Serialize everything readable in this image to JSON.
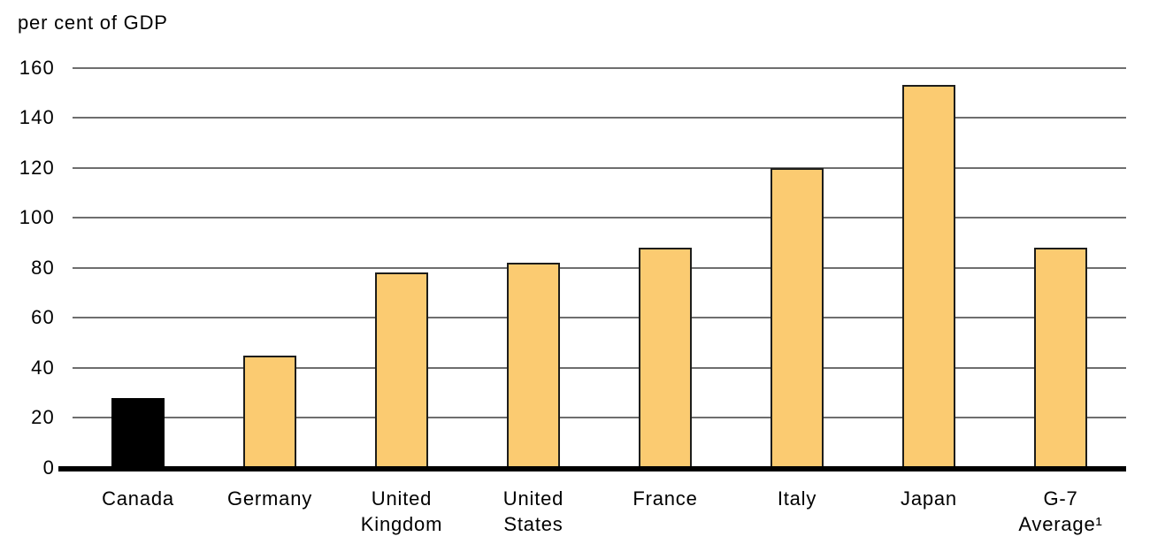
{
  "chart_data": {
    "type": "bar",
    "title": "",
    "ylabel": "per cent of GDP",
    "xlabel": "",
    "categories": [
      "Canada",
      "Germany",
      "United Kingdom",
      "United States",
      "France",
      "Italy",
      "Japan",
      "G-7 Average¹"
    ],
    "category_lines": [
      [
        "Canada"
      ],
      [
        "Germany"
      ],
      [
        "United",
        "Kingdom"
      ],
      [
        "United",
        "States"
      ],
      [
        "France"
      ],
      [
        "Italy"
      ],
      [
        "Japan"
      ],
      [
        "G-7",
        "Average¹"
      ]
    ],
    "values": [
      28,
      45,
      78,
      82,
      88,
      120,
      153,
      88
    ],
    "bar_fill_colors": [
      "#000000",
      "#FBCB71",
      "#FBCB71",
      "#FBCB71",
      "#FBCB71",
      "#FBCB71",
      "#FBCB71",
      "#FBCB71"
    ],
    "bar_border_colors": [
      "#000000",
      "#1d1d1b",
      "#1d1d1b",
      "#1d1d1b",
      "#1d1d1b",
      "#1d1d1b",
      "#1d1d1b",
      "#1d1d1b"
    ],
    "ylim": [
      0,
      160
    ],
    "yticks": [
      0,
      20,
      40,
      60,
      80,
      100,
      120,
      140,
      160
    ],
    "grid": true,
    "legend": null,
    "colors": {
      "gridline": "#6e6e6e",
      "baseline": "#000000",
      "text": "#000000",
      "background": "#ffffff"
    }
  }
}
